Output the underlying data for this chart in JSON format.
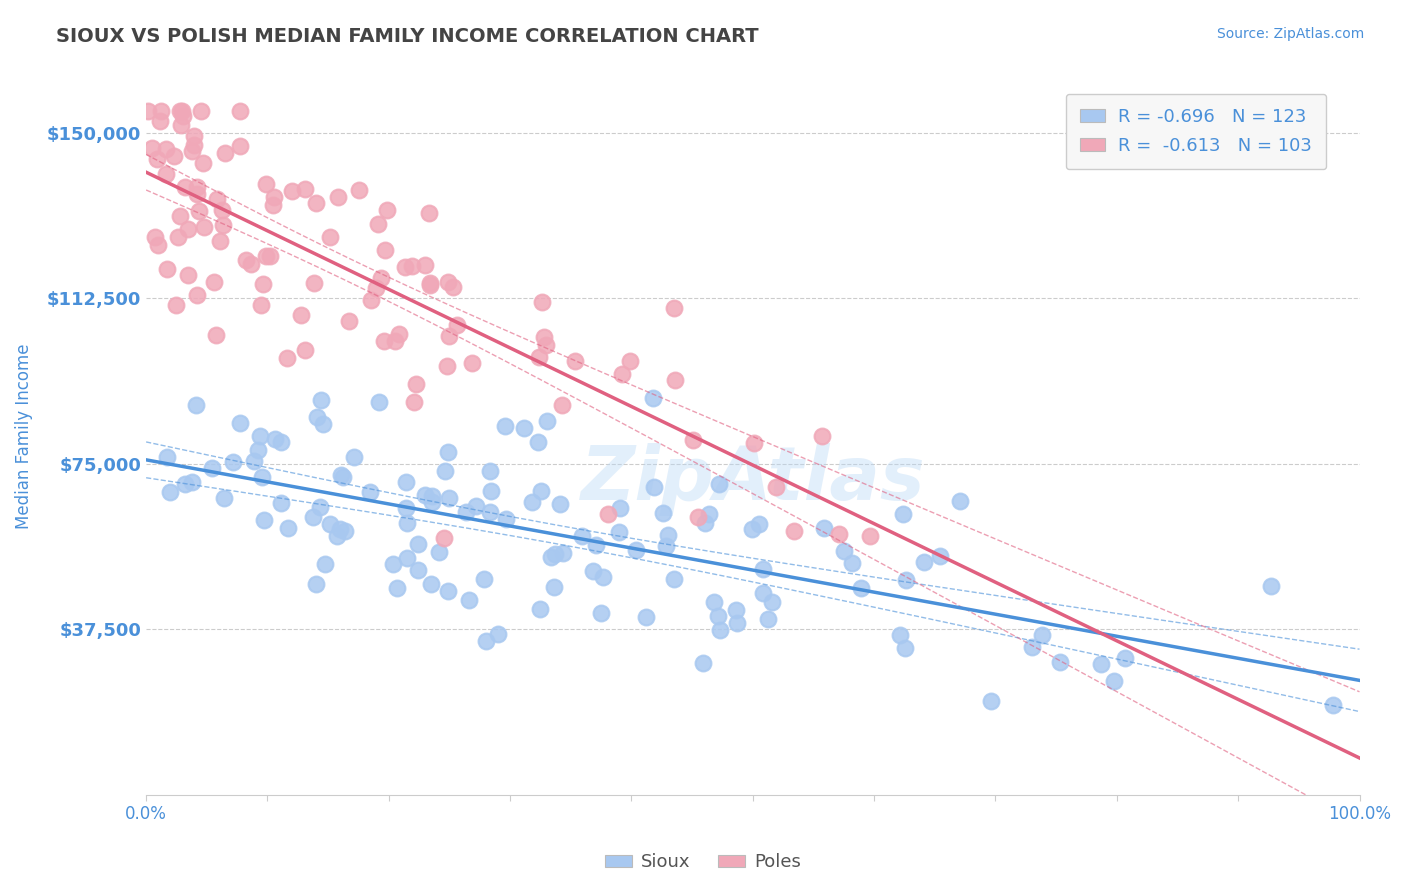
{
  "title": "SIOUX VS POLISH MEDIAN FAMILY INCOME CORRELATION CHART",
  "source": "Source: ZipAtlas.com",
  "ylabel": "Median Family Income",
  "xlim": [
    0,
    1.0
  ],
  "ylim": [
    0,
    162500
  ],
  "yticks": [
    37500,
    75000,
    112500,
    150000
  ],
  "ytick_labels": [
    "$37,500",
    "$75,000",
    "$112,500",
    "$150,000"
  ],
  "xticks": [
    0.0,
    0.1,
    0.2,
    0.3,
    0.4,
    0.5,
    0.6,
    0.7,
    0.8,
    0.9,
    1.0
  ],
  "xtick_labels_show": [
    "0.0%",
    "100.0%"
  ],
  "sioux_color": "#a8c8f0",
  "poles_color": "#f0a8b8",
  "sioux_line_color": "#4a90d9",
  "poles_line_color": "#e06080",
  "sioux_R": -0.696,
  "sioux_N": 123,
  "poles_R": -0.613,
  "poles_N": 103,
  "background_color": "#ffffff",
  "grid_color": "#cccccc",
  "title_color": "#444444",
  "axis_color": "#4a90d9",
  "watermark": "ZipAtlas"
}
